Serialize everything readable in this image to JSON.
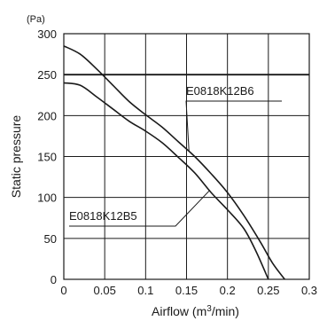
{
  "chart_data": {
    "type": "line",
    "xlabel_prefix": "Airflow (m",
    "xlabel_sup": "3",
    "xlabel_suffix": "/min)",
    "ylabel": "Static pressure",
    "y_unit": "(Pa)",
    "xlim": [
      0,
      0.3
    ],
    "ylim": [
      0,
      300
    ],
    "x_ticks": [
      {
        "value": 0,
        "label": "0"
      },
      {
        "value": 0.05,
        "label": "0.05"
      },
      {
        "value": 0.1,
        "label": "0.1"
      },
      {
        "value": 0.15,
        "label": "0.15"
      },
      {
        "value": 0.2,
        "label": "0.2"
      },
      {
        "value": 0.25,
        "label": "0.25"
      },
      {
        "value": 0.3,
        "label": "0.3"
      }
    ],
    "y_ticks": [
      {
        "value": 0,
        "label": "0"
      },
      {
        "value": 50,
        "label": "50"
      },
      {
        "value": 100,
        "label": "100"
      },
      {
        "value": 150,
        "label": "150"
      },
      {
        "value": 200,
        "label": "200"
      },
      {
        "value": 250,
        "label": "250"
      },
      {
        "value": 300,
        "label": "300"
      }
    ],
    "grid": true,
    "reference_line_y": 250,
    "series": [
      {
        "name": "E0818K12B6",
        "points": [
          [
            0,
            285
          ],
          [
            0.02,
            275
          ],
          [
            0.04,
            257
          ],
          [
            0.06,
            237
          ],
          [
            0.08,
            217
          ],
          [
            0.1,
            201
          ],
          [
            0.12,
            186
          ],
          [
            0.14,
            168
          ],
          [
            0.16,
            150
          ],
          [
            0.18,
            129
          ],
          [
            0.2,
            106
          ],
          [
            0.22,
            78
          ],
          [
            0.24,
            46
          ],
          [
            0.255,
            20
          ],
          [
            0.27,
            0
          ]
        ]
      },
      {
        "name": "E0818K12B5",
        "points": [
          [
            0,
            240
          ],
          [
            0.02,
            237
          ],
          [
            0.04,
            223
          ],
          [
            0.06,
            208
          ],
          [
            0.08,
            193
          ],
          [
            0.1,
            181
          ],
          [
            0.12,
            167
          ],
          [
            0.14,
            149
          ],
          [
            0.16,
            130
          ],
          [
            0.18,
            106
          ],
          [
            0.2,
            85
          ],
          [
            0.22,
            62
          ],
          [
            0.235,
            34
          ],
          [
            0.25,
            0
          ]
        ]
      }
    ]
  }
}
